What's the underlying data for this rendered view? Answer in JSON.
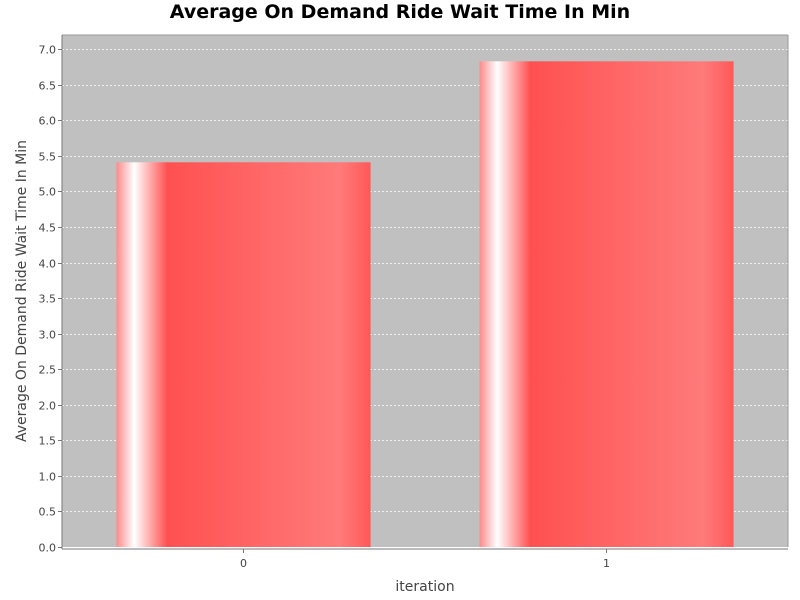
{
  "chart_data": {
    "type": "bar",
    "title": "Average On Demand Ride Wait Time In Min",
    "xlabel": "iteration",
    "ylabel": "Average On Demand Ride Wait Time In Min",
    "categories": [
      "0",
      "1"
    ],
    "values": [
      5.41,
      6.83
    ],
    "ylim": [
      0,
      7.2
    ],
    "yticks": [
      "0.0",
      "0.5",
      "1.0",
      "1.5",
      "2.0",
      "2.5",
      "3.0",
      "3.5",
      "4.0",
      "4.5",
      "5.0",
      "5.5",
      "6.0",
      "6.5",
      "7.0"
    ],
    "grid": true,
    "legend": "none",
    "colors": {
      "bar": "#ff5555",
      "bar_highlight": "#ffffff",
      "plot_background": "#c0c0c0",
      "gridline": "#ffffff"
    }
  }
}
